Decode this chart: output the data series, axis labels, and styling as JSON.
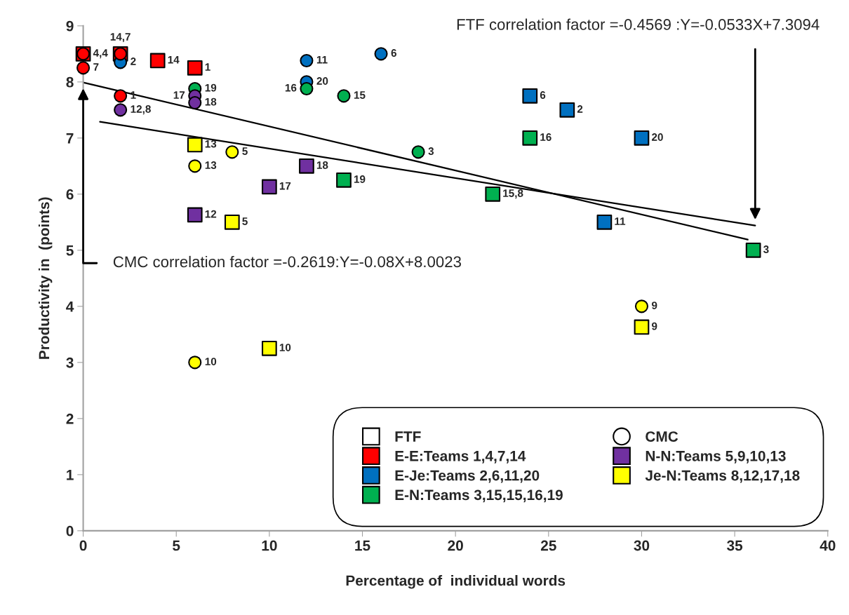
{
  "chart_data": {
    "type": "scatter",
    "xlabel": "Percentage of  individual words",
    "ylabel": "Productivity in  (points)",
    "xlim": [
      0,
      40
    ],
    "xticks": [
      0,
      5,
      10,
      15,
      20,
      25,
      30,
      35,
      40
    ],
    "ylim": [
      0,
      9
    ],
    "yticks": [
      0,
      1,
      2,
      3,
      4,
      5,
      6,
      7,
      8,
      9
    ],
    "grid": false,
    "legend": "bottom right",
    "series": [
      {
        "name": "FTF",
        "marker": "square",
        "color": "#ffffff"
      },
      {
        "name": "E-E:Teams 1,4,7,14",
        "marker": "square",
        "color": "#ff0000",
        "x": [
          0,
          2,
          4,
          6
        ],
        "values": [
          8.5,
          8.5,
          8.38,
          8.25
        ]
      },
      {
        "name": "E-Je:Teams 2,6,11,20",
        "marker": "square",
        "color": "#0070c0",
        "x": [
          24,
          26,
          30,
          28
        ],
        "values": [
          7.75,
          7.5,
          7.0,
          5.5
        ]
      },
      {
        "name": "E-N:Teams 3,15,15,16,19",
        "marker": "square",
        "color": "#00b050",
        "x": [
          24,
          14,
          22,
          36
        ],
        "values": [
          7.0,
          6.25,
          6.0,
          5.0
        ]
      },
      {
        "name": "CMC",
        "marker": "circle",
        "color": "#ffffff"
      },
      {
        "name": "N-N:Teams 5,9,10,13",
        "marker": "square",
        "color": "#7030a0",
        "x": [
          12,
          10,
          6
        ],
        "values": [
          6.5,
          6.13,
          5.63
        ]
      },
      {
        "name": "Je-N:Teams 8,12,17,18",
        "marker": "square",
        "color": "#ffff00",
        "x": [
          6,
          8,
          10,
          30
        ],
        "values": [
          6.88,
          5.5,
          3.25,
          3.63
        ]
      },
      {
        "marker": "circle",
        "color": "#0070c0",
        "x": [
          2,
          12,
          12,
          16
        ],
        "values": [
          8.35,
          8.38,
          8.0,
          8.5
        ]
      },
      {
        "marker": "circle",
        "color": "#ff0000",
        "x": [
          0,
          0,
          2,
          2
        ],
        "values": [
          8.25,
          8.5,
          8.5,
          7.75
        ]
      },
      {
        "marker": "circle",
        "color": "#00b050",
        "x": [
          6,
          12,
          14,
          18
        ],
        "values": [
          7.88,
          7.88,
          7.75,
          6.75
        ]
      },
      {
        "marker": "circle",
        "color": "#7030a0",
        "x": [
          6,
          6,
          2
        ],
        "values": [
          7.75,
          7.63,
          7.5
        ]
      },
      {
        "marker": "circle",
        "color": "#ffff00",
        "x": [
          6,
          8,
          6,
          30
        ],
        "values": [
          6.5,
          6.75,
          3.0,
          4.0
        ]
      },
      {
        "type": "line",
        "color": "#000000",
        "x": [
          0,
          35.7
        ],
        "values": [
          7.99,
          5.19
        ]
      },
      {
        "type": "line",
        "color": "#000000",
        "x": [
          0.9,
          36.1
        ],
        "values": [
          7.29,
          5.44
        ]
      }
    ],
    "annotations": [
      "FTF correlation factor =-0.4569 :Y=-0.0533X+7.3094",
      "CMC correlation factor =-0.2619:Y=-0.08X+8.0023",
      {
        "text": "4,4",
        "x": 0,
        "y": 8.5
      },
      {
        "text": "14,7",
        "x": 2,
        "y": 8.5
      },
      {
        "text": "14",
        "x": 4,
        "y": 8.38
      },
      {
        "text": "1",
        "x": 6,
        "y": 8.25
      },
      {
        "text": "6",
        "x": 24,
        "y": 7.75
      },
      {
        "text": "2",
        "x": 26,
        "y": 7.5
      },
      {
        "text": "20",
        "x": 30,
        "y": 7.0
      },
      {
        "text": "11",
        "x": 28,
        "y": 5.5
      },
      {
        "text": "16",
        "x": 24,
        "y": 7.0
      },
      {
        "text": "19",
        "x": 14,
        "y": 6.25
      },
      {
        "text": "15,8",
        "x": 22,
        "y": 6.0
      },
      {
        "text": "3",
        "x": 36,
        "y": 5.0
      },
      {
        "text": "18",
        "x": 12,
        "y": 6.5
      },
      {
        "text": "17",
        "x": 10,
        "y": 6.13
      },
      {
        "text": "12",
        "x": 6,
        "y": 5.63
      },
      {
        "text": "13",
        "x": 6,
        "y": 6.88
      },
      {
        "text": "5",
        "x": 8,
        "y": 5.5
      },
      {
        "text": "10",
        "x": 10,
        "y": 3.25
      },
      {
        "text": "9",
        "x": 30,
        "y": 3.63
      },
      {
        "text": "2",
        "x": 2,
        "y": 8.35
      },
      {
        "text": "11",
        "x": 12,
        "y": 8.38
      },
      {
        "text": "20",
        "x": 12,
        "y": 8.0
      },
      {
        "text": "6",
        "x": 16,
        "y": 8.5
      },
      {
        "text": "7",
        "x": 0,
        "y": 8.25
      },
      {
        "text": "1",
        "x": 2,
        "y": 7.75
      },
      {
        "text": "19",
        "x": 6,
        "y": 7.88
      },
      {
        "text": "16",
        "x": 12,
        "y": 7.88
      },
      {
        "text": "15",
        "x": 14,
        "y": 7.75
      },
      {
        "text": "3",
        "x": 18,
        "y": 6.75
      },
      {
        "text": "17",
        "x": 6,
        "y": 7.75
      },
      {
        "text": "18",
        "x": 6,
        "y": 7.63
      },
      {
        "text": "12,8",
        "x": 2,
        "y": 7.5
      },
      {
        "text": "13",
        "x": 6,
        "y": 6.5
      },
      {
        "text": "5",
        "x": 8,
        "y": 6.75
      },
      {
        "text": "10",
        "x": 6,
        "y": 3.0
      },
      {
        "text": "9",
        "x": 30,
        "y": 4.0
      }
    ]
  }
}
